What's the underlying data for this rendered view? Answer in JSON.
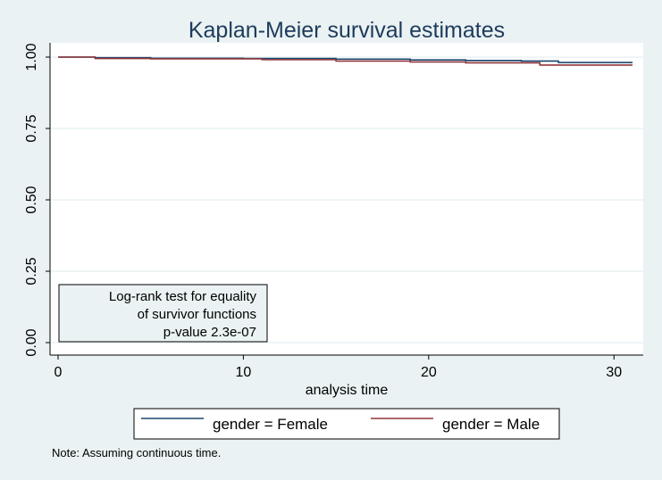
{
  "chart_data": {
    "type": "line",
    "title": "Kaplan-Meier survival estimates",
    "xlabel": "analysis time",
    "ylabel": "",
    "xlim": [
      0,
      31
    ],
    "ylim": [
      0,
      1
    ],
    "x_ticks": [
      0,
      10,
      20,
      30
    ],
    "x_tick_labels": [
      "0",
      "10",
      "20",
      "30"
    ],
    "y_ticks": [
      0,
      0.25,
      0.5,
      0.75,
      1
    ],
    "y_tick_labels": [
      "0.00",
      "0.25",
      "0.50",
      "0.75",
      "1.00"
    ],
    "grid": true,
    "legend_position": "bottom",
    "series": [
      {
        "name": "gender = Female",
        "color": "#1a476f",
        "steps": [
          [
            0,
            1.0
          ],
          [
            2,
            0.998
          ],
          [
            5,
            0.996
          ],
          [
            10,
            0.995
          ],
          [
            15,
            0.993
          ],
          [
            19,
            0.99
          ],
          [
            22,
            0.988
          ],
          [
            25,
            0.986
          ],
          [
            27,
            0.981
          ],
          [
            31,
            0.981
          ]
        ]
      },
      {
        "name": "gender = Male",
        "color": "#90353b",
        "steps": [
          [
            0,
            1.0
          ],
          [
            2,
            0.995
          ],
          [
            5,
            0.994
          ],
          [
            11,
            0.991
          ],
          [
            15,
            0.986
          ],
          [
            19,
            0.983
          ],
          [
            22,
            0.98
          ],
          [
            26,
            0.972
          ],
          [
            31,
            0.972
          ]
        ]
      }
    ],
    "annotation": {
      "lines": [
        "Log-rank test for equality",
        "of survivor functions",
        "p-value   2.3e-07"
      ]
    },
    "note": "Note: Assuming continuous time."
  }
}
